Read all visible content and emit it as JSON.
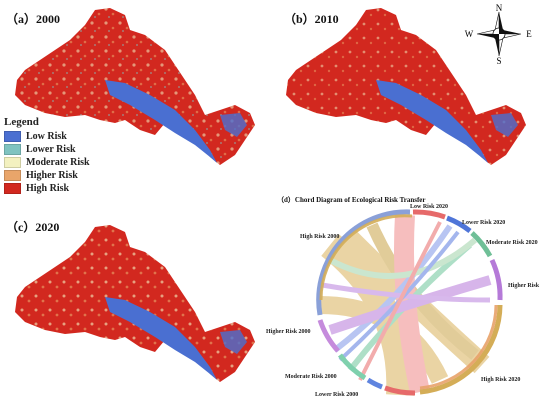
{
  "panels": {
    "a": "（a）2000",
    "b": "（b）2010",
    "c": "（c）2020",
    "d": "（d）Chord Diagram of Ecological Risk Transfer"
  },
  "legend": {
    "title": "Legend",
    "items": [
      {
        "label": "Low Risk",
        "color": "#4a6fd1"
      },
      {
        "label": "Lower Risk",
        "color": "#7fc3c0"
      },
      {
        "label": "Moderate Risk",
        "color": "#f3f1c0"
      },
      {
        "label": "Higher Risk",
        "color": "#e9a56a"
      },
      {
        "label": "High Risk",
        "color": "#d2281f"
      }
    ]
  },
  "compass": {
    "n": "N",
    "s": "S",
    "e": "E",
    "w": "W"
  },
  "chord": {
    "labels": {
      "low2020": "Low Risk 2020",
      "lower2020": "Lower Risk 2020",
      "moderate2020": "Moderate Risk 2020",
      "higher": "Higher Risk",
      "high2020": "High Risk 2020",
      "lower2000": "Lower Risk 2000",
      "moderate2000": "Moderate Risk 2000",
      "higher2000": "Higher Risk 2000",
      "high2000": "High Risk 2000"
    }
  }
}
